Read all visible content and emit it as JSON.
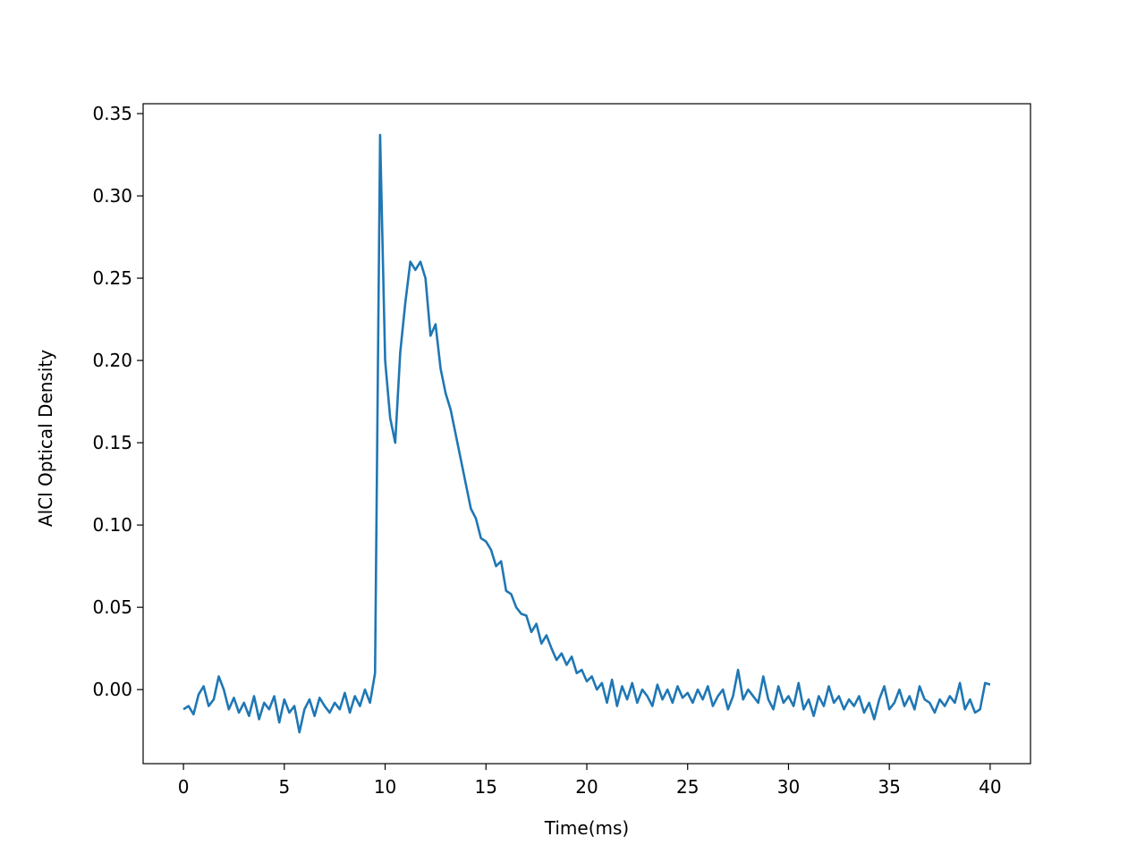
{
  "chart_data": {
    "type": "line",
    "xlabel": "Time(ms)",
    "ylabel": "AlCl Optical Density",
    "xlim": [
      -2.0,
      42.0
    ],
    "ylim": [
      -0.045,
      0.356
    ],
    "xticks": [
      0,
      5,
      10,
      15,
      20,
      25,
      30,
      35,
      40
    ],
    "yticks": [
      {
        "value": 0.0,
        "label": "0.00"
      },
      {
        "value": 0.05,
        "label": "0.05"
      },
      {
        "value": 0.1,
        "label": "0.10"
      },
      {
        "value": 0.15,
        "label": "0.15"
      },
      {
        "value": 0.2,
        "label": "0.20"
      },
      {
        "value": 0.25,
        "label": "0.25"
      },
      {
        "value": 0.3,
        "label": "0.30"
      },
      {
        "value": 0.35,
        "label": "0.35"
      }
    ],
    "color": "#1f77b4",
    "x": [
      0,
      0.25,
      0.5,
      0.75,
      1,
      1.25,
      1.5,
      1.75,
      2,
      2.25,
      2.5,
      2.75,
      3,
      3.25,
      3.5,
      3.75,
      4,
      4.25,
      4.5,
      4.75,
      5,
      5.25,
      5.5,
      5.75,
      6,
      6.25,
      6.5,
      6.75,
      7,
      7.25,
      7.5,
      7.75,
      8,
      8.25,
      8.5,
      8.75,
      9,
      9.25,
      9.5,
      9.75,
      10,
      10.25,
      10.5,
      10.75,
      11,
      11.25,
      11.5,
      11.75,
      12,
      12.25,
      12.5,
      12.75,
      13,
      13.25,
      13.5,
      13.75,
      14,
      14.25,
      14.5,
      14.75,
      15,
      15.25,
      15.5,
      15.75,
      16,
      16.25,
      16.5,
      16.75,
      17,
      17.25,
      17.5,
      17.75,
      18,
      18.25,
      18.5,
      18.75,
      19,
      19.25,
      19.5,
      19.75,
      20,
      20.25,
      20.5,
      20.75,
      21,
      21.25,
      21.5,
      21.75,
      22,
      22.25,
      22.5,
      22.75,
      23,
      23.25,
      23.5,
      23.75,
      24,
      24.25,
      24.5,
      24.75,
      25,
      25.25,
      25.5,
      25.75,
      26,
      26.25,
      26.5,
      26.75,
      27,
      27.25,
      27.5,
      27.75,
      28,
      28.25,
      28.5,
      28.75,
      29,
      29.25,
      29.5,
      29.75,
      30,
      30.25,
      30.5,
      30.75,
      31,
      31.25,
      31.5,
      31.75,
      32,
      32.25,
      32.5,
      32.75,
      33,
      33.25,
      33.5,
      33.75,
      34,
      34.25,
      34.5,
      34.75,
      35,
      35.25,
      35.5,
      35.75,
      36,
      36.25,
      36.5,
      36.75,
      37,
      37.25,
      37.5,
      37.75,
      38,
      38.25,
      38.5,
      38.75,
      39,
      39.25,
      39.5,
      39.75,
      40
    ],
    "values": [
      -0.012,
      -0.01,
      -0.015,
      -0.003,
      0.002,
      -0.01,
      -0.006,
      0.008,
      0.0,
      -0.012,
      -0.005,
      -0.014,
      -0.008,
      -0.016,
      -0.004,
      -0.018,
      -0.008,
      -0.012,
      -0.004,
      -0.02,
      -0.006,
      -0.014,
      -0.01,
      -0.026,
      -0.012,
      -0.006,
      -0.016,
      -0.005,
      -0.01,
      -0.014,
      -0.008,
      -0.012,
      -0.002,
      -0.014,
      -0.004,
      -0.01,
      0.0,
      -0.008,
      0.01,
      0.337,
      0.2,
      0.165,
      0.15,
      0.205,
      0.235,
      0.26,
      0.255,
      0.26,
      0.25,
      0.215,
      0.222,
      0.195,
      0.18,
      0.17,
      0.155,
      0.14,
      0.125,
      0.11,
      0.104,
      0.092,
      0.09,
      0.085,
      0.075,
      0.078,
      0.06,
      0.058,
      0.05,
      0.046,
      0.045,
      0.035,
      0.04,
      0.028,
      0.033,
      0.025,
      0.018,
      0.022,
      0.015,
      0.02,
      0.01,
      0.012,
      0.005,
      0.008,
      0.0,
      0.004,
      -0.008,
      0.006,
      -0.01,
      0.002,
      -0.006,
      0.004,
      -0.008,
      0.0,
      -0.004,
      -0.01,
      0.003,
      -0.006,
      0.0,
      -0.008,
      0.002,
      -0.005,
      -0.002,
      -0.008,
      0.0,
      -0.006,
      0.002,
      -0.01,
      -0.004,
      0.0,
      -0.012,
      -0.004,
      0.012,
      -0.006,
      0.0,
      -0.004,
      -0.008,
      0.008,
      -0.006,
      -0.012,
      0.002,
      -0.008,
      -0.004,
      -0.01,
      0.004,
      -0.012,
      -0.006,
      -0.016,
      -0.004,
      -0.01,
      0.002,
      -0.008,
      -0.004,
      -0.012,
      -0.006,
      -0.01,
      -0.004,
      -0.014,
      -0.008,
      -0.018,
      -0.006,
      0.002,
      -0.012,
      -0.008,
      0.0,
      -0.01,
      -0.004,
      -0.012,
      0.002,
      -0.006,
      -0.008,
      -0.014,
      -0.006,
      -0.01,
      -0.004,
      -0.008,
      0.004,
      -0.012,
      -0.006,
      -0.014,
      -0.012,
      0.004,
      0.003
    ]
  }
}
